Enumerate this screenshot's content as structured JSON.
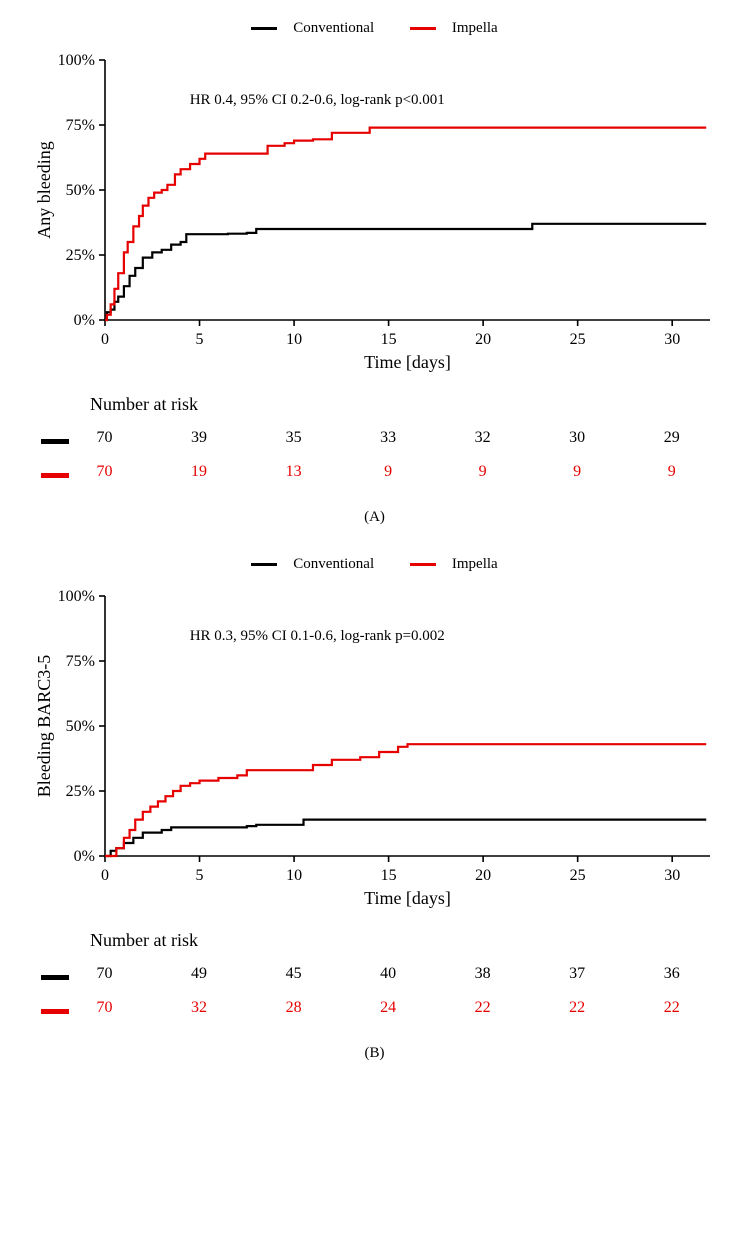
{
  "global": {
    "background_color": "#ffffff",
    "text_color": "#000000",
    "font_family": "Times New Roman",
    "series_colors": {
      "conventional": "#000000",
      "impella": "#e60000"
    },
    "legend_labels": {
      "conventional": "Conventional",
      "impella": "Impella"
    },
    "line_width": 2.2,
    "axis_line_width": 1.6,
    "tick_fontsize": 16,
    "axis_label_fontsize": 18,
    "annotation_fontsize": 15
  },
  "panelA": {
    "type": "kaplan-meier-cumulative-incidence",
    "panel_letter": "(A)",
    "ylabel": "Any bleeding",
    "xlabel": "Time [days]",
    "xlim": [
      0,
      32
    ],
    "ylim": [
      0,
      100
    ],
    "xticks": [
      0,
      5,
      10,
      15,
      20,
      25,
      30
    ],
    "yticks": [
      0,
      25,
      50,
      75,
      100
    ],
    "ytick_labels": [
      "0%",
      "25%",
      "50%",
      "75%",
      "100%"
    ],
    "annotation": "HR 0.4, 95% CI 0.2-0.6, log-rank p<0.001",
    "annotation_xy_pct": [
      0.14,
      0.83
    ],
    "series": {
      "conventional": {
        "color": "#000000",
        "points": [
          [
            0,
            0
          ],
          [
            0.1,
            3
          ],
          [
            0.3,
            4
          ],
          [
            0.5,
            7
          ],
          [
            0.7,
            9
          ],
          [
            1.0,
            13
          ],
          [
            1.3,
            17
          ],
          [
            1.6,
            20
          ],
          [
            2.0,
            24
          ],
          [
            2.5,
            26
          ],
          [
            3.0,
            27
          ],
          [
            3.5,
            29
          ],
          [
            4.0,
            30
          ],
          [
            4.3,
            33
          ],
          [
            5.0,
            33
          ],
          [
            6.5,
            33.2
          ],
          [
            7.5,
            33.5
          ],
          [
            8.0,
            35
          ],
          [
            10.0,
            35
          ],
          [
            15.0,
            35
          ],
          [
            20.0,
            35
          ],
          [
            22.5,
            35
          ],
          [
            22.6,
            37
          ],
          [
            31.8,
            37
          ]
        ]
      },
      "impella": {
        "color": "#e60000",
        "points": [
          [
            0,
            0
          ],
          [
            0.1,
            2
          ],
          [
            0.3,
            6
          ],
          [
            0.5,
            12
          ],
          [
            0.7,
            18
          ],
          [
            1.0,
            26
          ],
          [
            1.2,
            30
          ],
          [
            1.5,
            36
          ],
          [
            1.8,
            40
          ],
          [
            2.0,
            44
          ],
          [
            2.3,
            47
          ],
          [
            2.6,
            49
          ],
          [
            3.0,
            50
          ],
          [
            3.3,
            52
          ],
          [
            3.7,
            56
          ],
          [
            4.0,
            58
          ],
          [
            4.5,
            60
          ],
          [
            5.0,
            62
          ],
          [
            5.3,
            64
          ],
          [
            7.0,
            64
          ],
          [
            8.5,
            64
          ],
          [
            8.6,
            67
          ],
          [
            9.5,
            68
          ],
          [
            10.0,
            69
          ],
          [
            11.0,
            69.5
          ],
          [
            12.0,
            72
          ],
          [
            14.0,
            74
          ],
          [
            31.8,
            74
          ]
        ]
      }
    },
    "number_at_risk": {
      "title": "Number at risk",
      "times": [
        0,
        5,
        10,
        15,
        20,
        25,
        30
      ],
      "conventional": [
        70,
        39,
        35,
        33,
        32,
        30,
        29
      ],
      "impella": [
        70,
        19,
        13,
        9,
        9,
        9,
        9
      ]
    }
  },
  "panelB": {
    "type": "kaplan-meier-cumulative-incidence",
    "panel_letter": "(B)",
    "ylabel": "Bleeding BARC3-5",
    "xlabel": "Time [days]",
    "xlim": [
      0,
      32
    ],
    "ylim": [
      0,
      100
    ],
    "xticks": [
      0,
      5,
      10,
      15,
      20,
      25,
      30
    ],
    "yticks": [
      0,
      25,
      50,
      75,
      100
    ],
    "ytick_labels": [
      "0%",
      "25%",
      "50%",
      "75%",
      "100%"
    ],
    "annotation": "HR 0.3, 95% CI 0.1-0.6, log-rank p=0.002",
    "annotation_xy_pct": [
      0.14,
      0.83
    ],
    "series": {
      "conventional": {
        "color": "#000000",
        "points": [
          [
            0,
            0
          ],
          [
            0.3,
            2
          ],
          [
            0.6,
            3
          ],
          [
            1.0,
            5
          ],
          [
            1.5,
            7
          ],
          [
            2.0,
            9
          ],
          [
            3.0,
            10
          ],
          [
            3.5,
            11
          ],
          [
            4.0,
            11
          ],
          [
            5.0,
            11
          ],
          [
            6.5,
            11
          ],
          [
            7.5,
            11.5
          ],
          [
            8.0,
            12
          ],
          [
            9.0,
            12
          ],
          [
            10.0,
            12
          ],
          [
            10.5,
            14
          ],
          [
            11.0,
            14
          ],
          [
            15.0,
            14
          ],
          [
            20.0,
            14
          ],
          [
            25.0,
            14
          ],
          [
            31.8,
            14
          ]
        ]
      },
      "impella": {
        "color": "#e60000",
        "points": [
          [
            0,
            0
          ],
          [
            0.3,
            0
          ],
          [
            0.6,
            3
          ],
          [
            1.0,
            7
          ],
          [
            1.3,
            10
          ],
          [
            1.6,
            14
          ],
          [
            2.0,
            17
          ],
          [
            2.4,
            19
          ],
          [
            2.8,
            21
          ],
          [
            3.2,
            23
          ],
          [
            3.6,
            25
          ],
          [
            4.0,
            27
          ],
          [
            4.5,
            28
          ],
          [
            5.0,
            29
          ],
          [
            6.0,
            30
          ],
          [
            7.0,
            31
          ],
          [
            7.5,
            33
          ],
          [
            9.0,
            33
          ],
          [
            10.0,
            33
          ],
          [
            11.0,
            35
          ],
          [
            12.0,
            37
          ],
          [
            13.5,
            38
          ],
          [
            14.5,
            40
          ],
          [
            15.5,
            42
          ],
          [
            16.0,
            43
          ],
          [
            20.0,
            43
          ],
          [
            25.0,
            43
          ],
          [
            31.8,
            43
          ]
        ]
      }
    },
    "number_at_risk": {
      "title": "Number at risk",
      "times": [
        0,
        5,
        10,
        15,
        20,
        25,
        30
      ],
      "conventional": [
        70,
        49,
        45,
        40,
        38,
        37,
        36
      ],
      "impella": [
        70,
        32,
        28,
        24,
        22,
        22,
        22
      ]
    }
  }
}
